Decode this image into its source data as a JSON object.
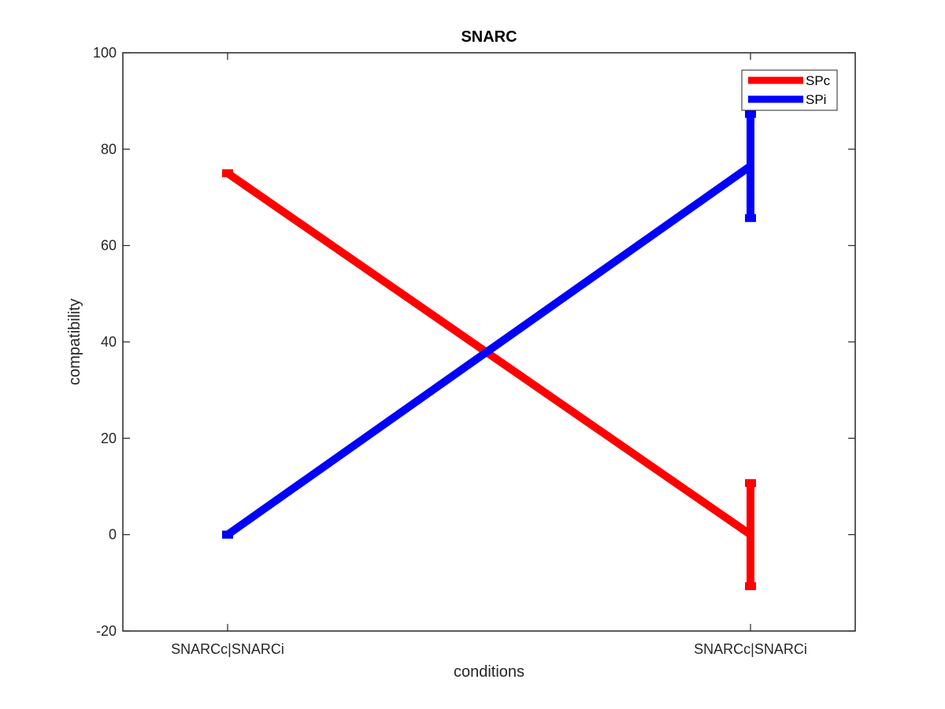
{
  "chart_data": {
    "type": "line",
    "title": "SNARC",
    "xlabel": "conditions",
    "ylabel": "compatibility",
    "ylim": [
      -20,
      100
    ],
    "yticks": [
      -20,
      0,
      20,
      40,
      60,
      80,
      100
    ],
    "categories": [
      "SNARCc|SNARCi",
      "SNARCc|SNARCi"
    ],
    "grid": false,
    "legend_position": "top-right",
    "series": [
      {
        "name": "SPc",
        "color": "#ff0000",
        "values": [
          75,
          0
        ],
        "errors": [
          0,
          10.7
        ]
      },
      {
        "name": "SPi",
        "color": "#0000ff",
        "values": [
          0,
          76.5
        ],
        "errors": [
          0,
          10.8
        ]
      }
    ]
  }
}
